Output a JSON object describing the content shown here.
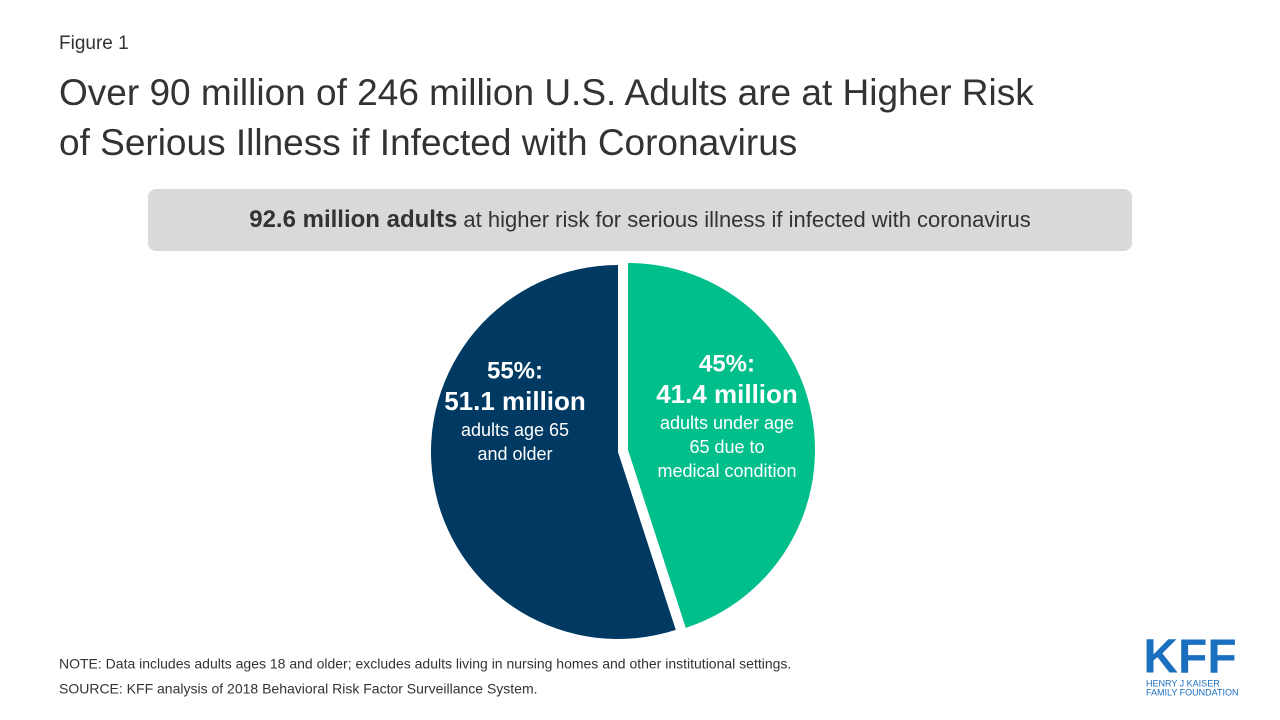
{
  "figure_label": "Figure 1",
  "chart_data": {
    "type": "pie",
    "title_lines": [
      "Over 90 million of 246 million U.S. Adults are at Higher Risk",
      "of Serious Illness if Infected with Coronavirus"
    ],
    "banner": {
      "bold": "92.6 million adults",
      "text": " at higher risk for serious illness if infected with coronavirus"
    },
    "categories": [
      "adults age 65 and older",
      "adults under age 65 due to medical condition"
    ],
    "values": [
      55,
      45
    ],
    "value_labels": [
      "55%:",
      "45%:"
    ],
    "amount_labels": [
      "51.1 million",
      "41.4 million"
    ],
    "description_lines": [
      [
        "adults age 65",
        "and older"
      ],
      [
        "adults under age",
        "65 due to",
        "medical condition"
      ]
    ],
    "colors": [
      "#003a63",
      "#00bf8a"
    ]
  },
  "note": "NOTE: Data includes adults ages 18 and older; excludes adults living in nursing homes and other institutional settings.",
  "source": "SOURCE: KFF analysis of 2018 Behavioral Risk Factor Surveillance System.",
  "logo": {
    "mark": "KFF",
    "lines": [
      "HENRY J KAISER",
      "FAMILY FOUNDATION"
    ]
  }
}
